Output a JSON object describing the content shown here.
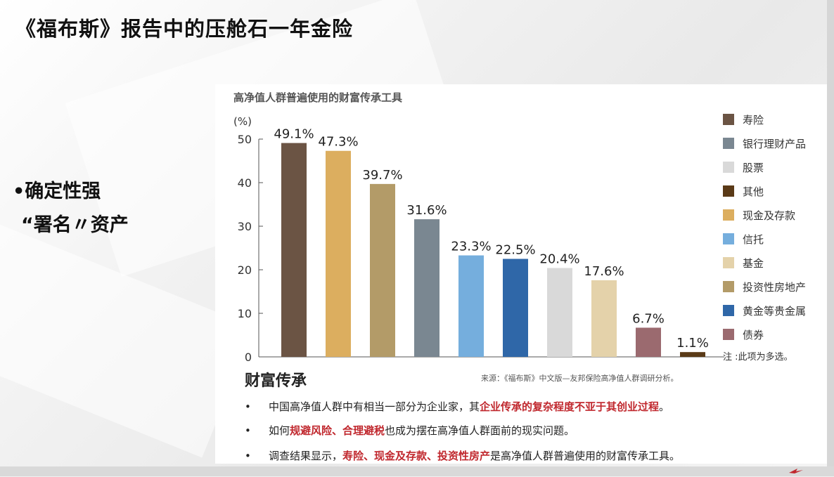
{
  "slide": {
    "title": "《福布斯》报告中的压舱石一年金险",
    "bullet_1": "•确定性强",
    "bullet_2": "“署名〃资产"
  },
  "chart_data": {
    "type": "bar",
    "title": "高净值人群普遍使用的财富传承工具",
    "ylabel": "(%)",
    "ylim": [
      0,
      50
    ],
    "yticks": [
      0,
      10,
      20,
      30,
      40,
      50
    ],
    "grid": false,
    "legend_position": "right",
    "categories": [
      "寿险",
      "现金及存款",
      "投资性房地产",
      "银行理财产品",
      "信托",
      "黄金等贵金属",
      "股票",
      "基金",
      "债券",
      "其他"
    ],
    "values": [
      49.1,
      47.3,
      39.7,
      31.6,
      23.3,
      22.5,
      20.4,
      17.6,
      6.7,
      1.1
    ],
    "value_labels": [
      "49.1%",
      "47.3%",
      "39.7%",
      "31.6%",
      "23.3%",
      "22.5%",
      "20.4%",
      "17.6%",
      "6.7%",
      "1.1%"
    ],
    "colors": [
      "#6b5444",
      "#dcae5f",
      "#b39b68",
      "#7a8791",
      "#75aedd",
      "#2f67a8",
      "#d9d9d9",
      "#e4d2aa",
      "#9b6a6f",
      "#5a3a17"
    ],
    "legend": [
      {
        "label": "寿险",
        "color": "#6b5444"
      },
      {
        "label": "银行理财产品",
        "color": "#7a8791"
      },
      {
        "label": "股票",
        "color": "#d9d9d9"
      },
      {
        "label": "其他",
        "color": "#5a3a17"
      },
      {
        "label": "现金及存款",
        "color": "#dcae5f"
      },
      {
        "label": "信托",
        "color": "#75aedd"
      },
      {
        "label": "基金",
        "color": "#e4d2aa"
      },
      {
        "label": "投资性房地产",
        "color": "#b39b68"
      },
      {
        "label": "黄金等贵金属",
        "color": "#2f67a8"
      },
      {
        "label": "债券",
        "color": "#9b6a6f"
      }
    ],
    "note": "注 :此项为多选。"
  },
  "bottom": {
    "heading": "财富传承",
    "source": "来源：《福布斯》中文版—友邦保险高净值人群调研分析。",
    "bullet_symbol": "•",
    "lines": [
      [
        {
          "text": "中国高净值人群中有相当一部分为企业家，其",
          "hl": false
        },
        {
          "text": "企业传承的复杂程度不亚于其创业过程",
          "hl": true
        },
        {
          "text": "。",
          "hl": false
        }
      ],
      [
        {
          "text": "如何",
          "hl": false
        },
        {
          "text": "规避风险、合理避税",
          "hl": true
        },
        {
          "text": "也成为摆在高净值人群面前的现实问题。",
          "hl": false
        }
      ],
      [
        {
          "text": "调查结果显示，",
          "hl": false
        },
        {
          "text": "寿险、现金及存款、投资性房产",
          "hl": true
        },
        {
          "text": "是高净值人群普遍使用的财富传承工具。",
          "hl": false
        }
      ]
    ]
  }
}
